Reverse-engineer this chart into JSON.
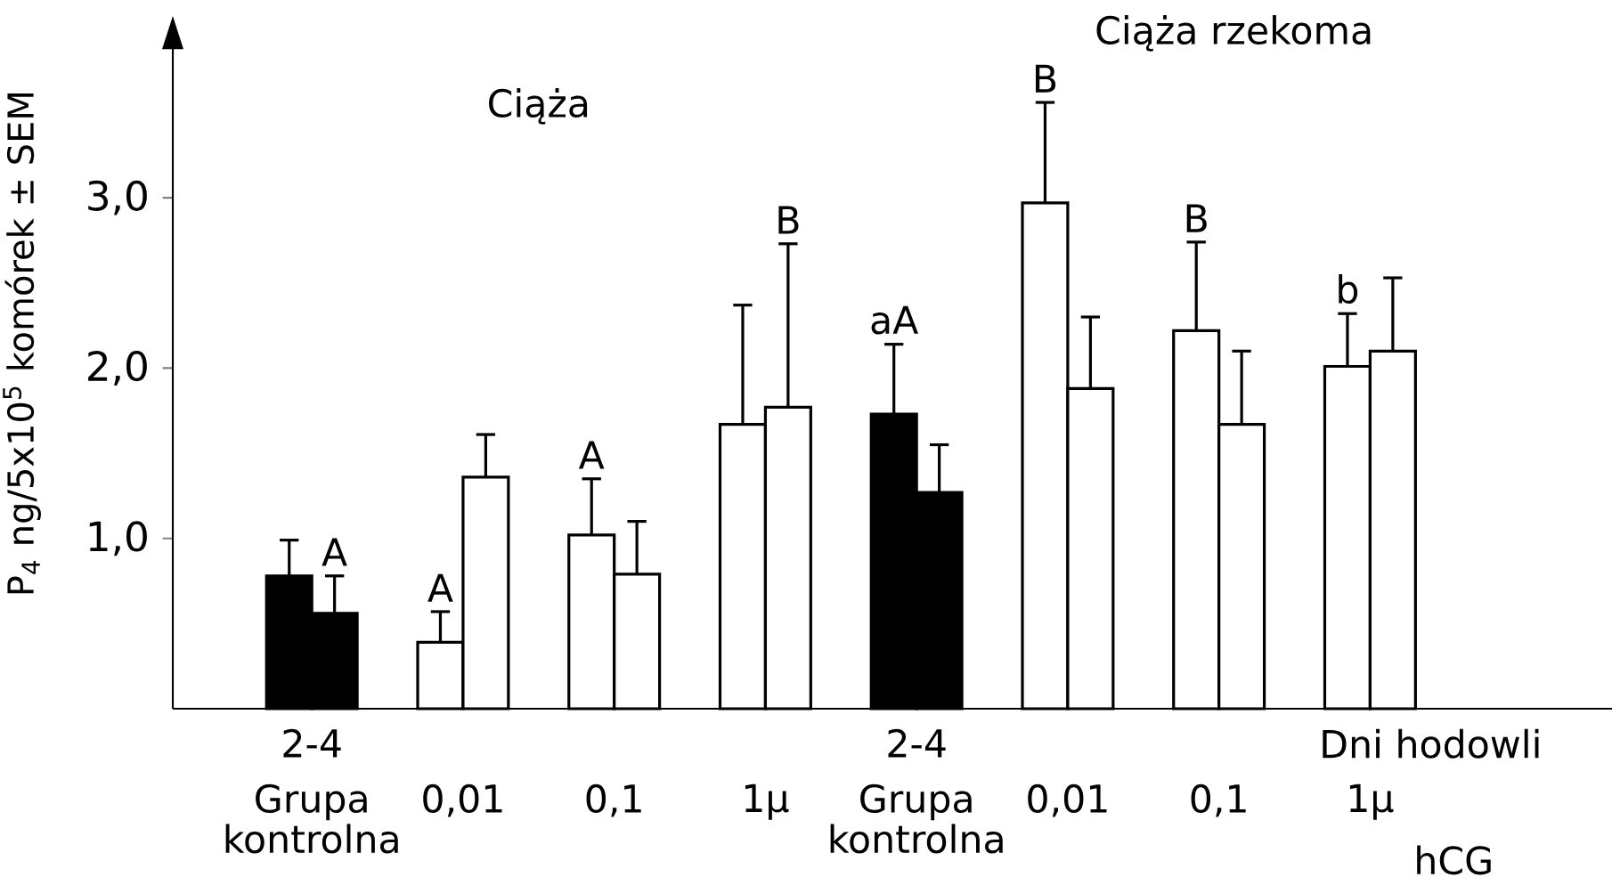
{
  "chart_data": {
    "type": "bar",
    "categories": [
      "Grupa kontrolna",
      "0,01",
      "0,1",
      "1µ",
      "Grupa kontrolna",
      "0,01",
      "0,1",
      "1µ"
    ],
    "series": [
      {
        "colors": [
          "#000000",
          "#ffffff",
          "#ffffff",
          "#ffffff",
          "#000000",
          "#ffffff",
          "#ffffff",
          "#ffffff"
        ],
        "values": [
          0.78,
          0.39,
          1.02,
          1.67,
          1.73,
          2.97,
          2.22,
          2.01
        ],
        "errors": [
          [
            0.78,
            0.99
          ],
          [
            0.39,
            0.57
          ],
          [
            1.02,
            1.35
          ],
          [
            1.67,
            2.37
          ],
          [
            1.73,
            2.14
          ],
          [
            2.97,
            3.56
          ],
          [
            2.22,
            2.74
          ],
          [
            2.01,
            2.32
          ]
        ],
        "value_labels": [
          null,
          "A",
          "A",
          null,
          "aA",
          "B",
          "B",
          "b"
        ]
      },
      {
        "colors": [
          "#000000",
          "#ffffff",
          "#ffffff",
          "#ffffff",
          "#000000",
          "#ffffff",
          "#ffffff",
          "#ffffff"
        ],
        "values": [
          0.56,
          1.36,
          0.79,
          1.77,
          1.27,
          1.88,
          1.67,
          2.1
        ],
        "errors": [
          [
            0.56,
            0.78
          ],
          [
            1.36,
            1.61
          ],
          [
            0.79,
            1.1
          ],
          [
            1.77,
            2.73
          ],
          [
            1.27,
            1.55
          ],
          [
            1.88,
            2.3
          ],
          [
            1.67,
            2.1
          ],
          [
            2.1,
            2.53
          ]
        ],
        "value_labels": [
          "A",
          null,
          null,
          null,
          null,
          null,
          null,
          null
        ]
      }
    ],
    "ylabel": "P$_{4}$ ng/5x10$^{5}$ komórek ± SEM",
    "xlabel": "hCG",
    "ylim": [
      0,
      3.9
    ],
    "yticks": [
      {
        "value": 1,
        "label": "1,0"
      },
      {
        "value": 2,
        "label": "2,0"
      },
      {
        "value": 3,
        "label": "3,0"
      }
    ],
    "annotations": [
      "Ciąża",
      "Ciąża rzekoma",
      "2-4",
      "2-4",
      "Dni hodowli",
      "B"
    ]
  }
}
